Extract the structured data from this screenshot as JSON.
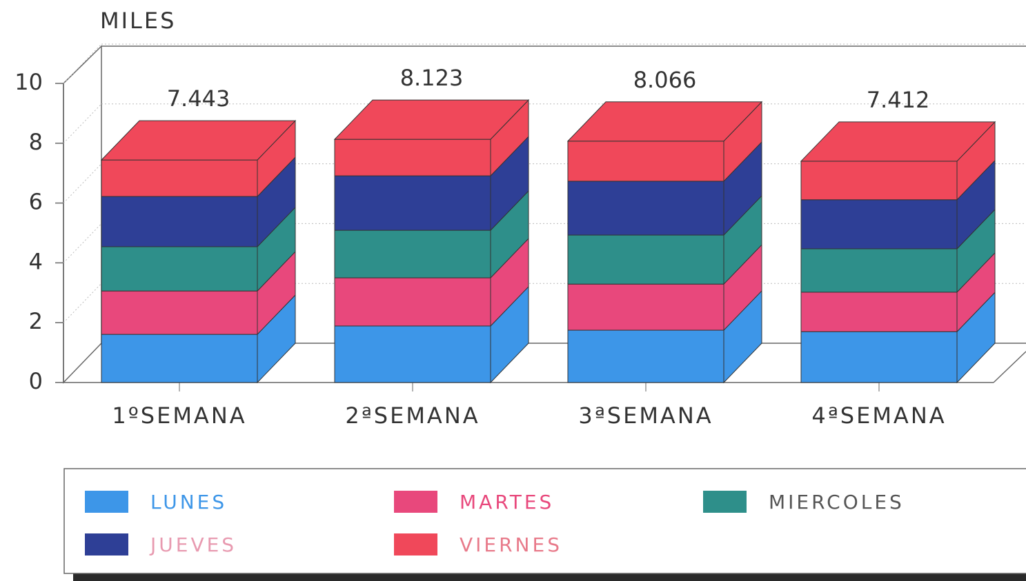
{
  "chart_data": {
    "type": "bar3d_stacked",
    "y_label": "MILES",
    "categories": [
      "1ºSEMANA",
      "2ªSEMANA",
      "3ªSEMANA",
      "4ªSEMANA"
    ],
    "series": [
      {
        "name": "LUNES",
        "color": "#3d96e8",
        "values": [
          1.61,
          1.89,
          1.75,
          1.7
        ]
      },
      {
        "name": "MARTES",
        "color": "#e8487c",
        "values": [
          1.45,
          1.61,
          1.54,
          1.32
        ]
      },
      {
        "name": "MIERCOLES",
        "color": "#2e8f8a",
        "values": [
          1.48,
          1.59,
          1.64,
          1.45
        ]
      },
      {
        "name": "JUEVES",
        "color": "#2e3f96",
        "values": [
          1.68,
          1.82,
          1.8,
          1.64
        ]
      },
      {
        "name": "VIERNES",
        "color": "#f0485a",
        "values": [
          1.22,
          1.22,
          1.34,
          1.29
        ]
      }
    ],
    "totals": [
      7.443,
      8.123,
      8.066,
      7.412
    ],
    "ylim": [
      0,
      10
    ],
    "yticks": [
      0,
      2,
      4,
      6,
      8,
      10
    ],
    "grid": true
  }
}
